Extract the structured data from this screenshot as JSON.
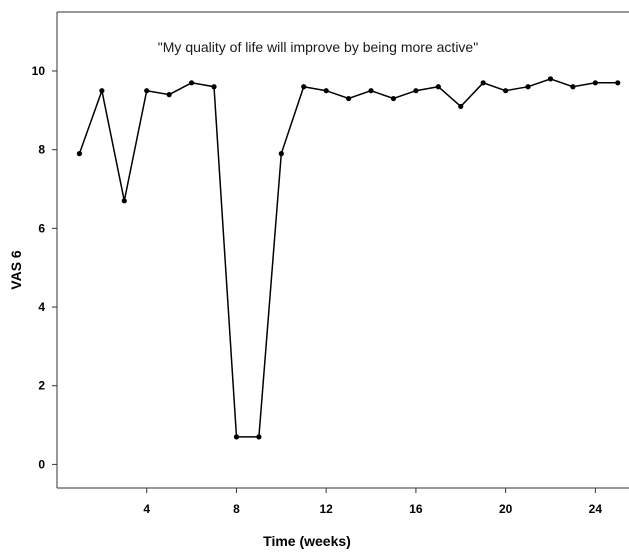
{
  "chart_data": {
    "type": "line",
    "title": "",
    "annotation": "\"My quality of life will improve by being more active\"",
    "xlabel": "Time (weeks)",
    "ylabel": "VAS 6",
    "xlim": [
      0,
      25.5
    ],
    "ylim": [
      -0.6,
      11.5
    ],
    "x_ticks": [
      4,
      8,
      12,
      16,
      20,
      24
    ],
    "y_ticks": [
      0,
      2,
      4,
      6,
      8,
      10
    ],
    "grid": false,
    "line_color": "#000000",
    "series": [
      {
        "x": [
          1,
          2,
          3,
          4,
          5,
          6,
          7,
          8,
          9,
          10,
          11,
          12,
          13,
          14,
          15,
          16,
          17,
          18,
          19,
          20,
          21,
          22,
          23,
          24,
          25
        ],
        "values": [
          7.9,
          9.5,
          6.7,
          9.5,
          9.4,
          9.7,
          9.6,
          0.7,
          0.7,
          7.9,
          9.6,
          9.5,
          9.3,
          9.5,
          9.3,
          9.5,
          9.6,
          9.1,
          9.7,
          9.5,
          9.6,
          9.8,
          9.6,
          9.7,
          9.7
        ]
      }
    ]
  }
}
